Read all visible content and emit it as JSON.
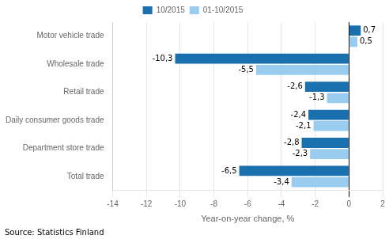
{
  "chart_data": {
    "type": "bar",
    "orientation": "horizontal",
    "categories": [
      "Total trade",
      "Department store trade",
      "Daily consumer goods trade",
      "Retail trade",
      "Wholesale trade",
      "Motor vehicle trade"
    ],
    "series": [
      {
        "name": "10/2015",
        "color": "#1a6faf",
        "values": [
          -6.5,
          -2.8,
          -2.4,
          -2.6,
          -10.3,
          0.7
        ],
        "value_labels": [
          "-6,5",
          "-2,8",
          "-2,4",
          "-2,6",
          "-10,3",
          "0,7"
        ]
      },
      {
        "name": "01-10/2015",
        "color": "#99ccee",
        "values": [
          -3.4,
          -2.3,
          -2.1,
          -1.3,
          -5.5,
          0.5
        ],
        "value_labels": [
          "-3,4",
          "-2,3",
          "-2,1",
          "-1,3",
          "-5,5",
          "0,5"
        ]
      }
    ],
    "xlabel": "Year-on-year change, %",
    "xlim": [
      -14,
      2
    ],
    "xticks": [
      -14,
      -12,
      -10,
      -8,
      -6,
      -4,
      -2,
      0,
      2
    ],
    "grid": true,
    "legend": "top",
    "data_labels": true,
    "annotations": [
      "Source: Statistics Finland"
    ]
  }
}
